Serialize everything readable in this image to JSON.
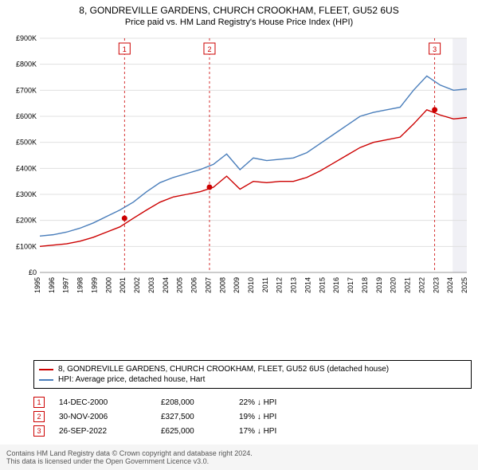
{
  "title": "8, GONDREVILLE GARDENS, CHURCH CROOKHAM, FLEET, GU52 6US",
  "subtitle": "Price paid vs. HM Land Registry's House Price Index (HPI)",
  "chart": {
    "type": "line",
    "background_color": "#ffffff",
    "grid_color": "#e0e0e0",
    "shaded_future_color": "#f0f0f5",
    "title_fontsize": 12,
    "label_fontsize": 9,
    "x": {
      "years": [
        1995,
        1996,
        1997,
        1998,
        1999,
        2000,
        2001,
        2002,
        2003,
        2004,
        2005,
        2006,
        2007,
        2008,
        2009,
        2010,
        2011,
        2012,
        2013,
        2014,
        2015,
        2016,
        2017,
        2018,
        2019,
        2020,
        2021,
        2022,
        2023,
        2024,
        2025
      ]
    },
    "y": {
      "min": 0,
      "max": 900,
      "step": 100,
      "prefix": "£",
      "suffix": "K"
    },
    "series": {
      "property": {
        "label": "8, GONDREVILLE GARDENS, CHURCH CROOKHAM, FLEET, GU52 6US (detached house)",
        "color": "#cc0000",
        "line_width": 1.4,
        "values_k": [
          100,
          105,
          110,
          120,
          135,
          155,
          175,
          208,
          240,
          270,
          290,
          300,
          310,
          327,
          370,
          320,
          350,
          345,
          350,
          350,
          365,
          390,
          420,
          450,
          480,
          500,
          510,
          520,
          570,
          625,
          605,
          590,
          595
        ]
      },
      "hpi": {
        "label": "HPI: Average price, detached house, Hart",
        "color": "#4a7ebb",
        "line_width": 1.4,
        "values_k": [
          140,
          145,
          155,
          170,
          190,
          215,
          240,
          270,
          310,
          345,
          365,
          380,
          395,
          415,
          455,
          395,
          440,
          430,
          435,
          440,
          460,
          495,
          530,
          565,
          600,
          615,
          625,
          635,
          700,
          755,
          720,
          700,
          705
        ]
      }
    },
    "sale_markers": [
      {
        "n": "1",
        "year": 2000.95,
        "price_k": 208,
        "date": "14-DEC-2000",
        "price": "£208,000",
        "pct": "22% ↓ HPI"
      },
      {
        "n": "2",
        "year": 2006.92,
        "price_k": 327.5,
        "date": "30-NOV-2006",
        "price": "£327,500",
        "pct": "19% ↓ HPI"
      },
      {
        "n": "3",
        "year": 2022.74,
        "price_k": 625,
        "date": "26-SEP-2022",
        "price": "£625,000",
        "pct": "17% ↓ HPI"
      }
    ],
    "marker_line_color": "#cc0000",
    "marker_box_border": "#cc0000",
    "marker_box_text": "#cc0000",
    "marker_dot_fill": "#cc0000"
  },
  "footer": {
    "line1": "Contains HM Land Registry data © Crown copyright and database right 2024.",
    "line2": "This data is licensed under the Open Government Licence v3.0."
  }
}
